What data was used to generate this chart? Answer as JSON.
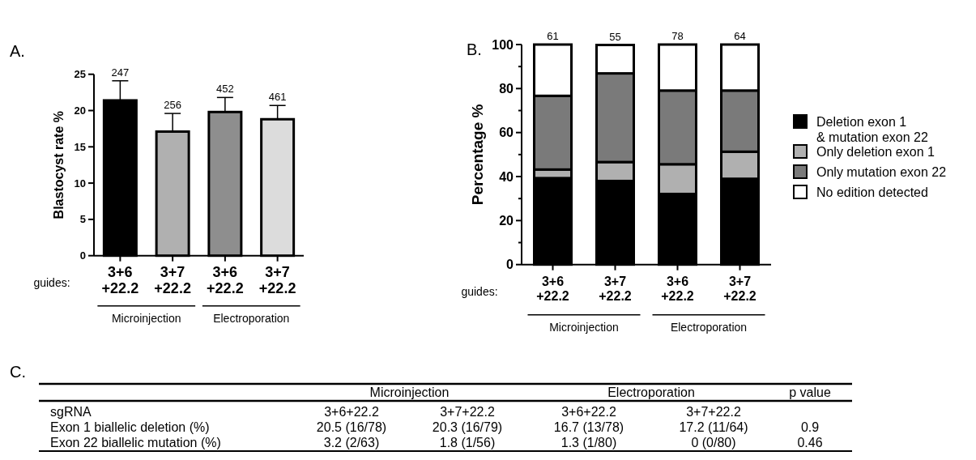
{
  "chart_data": [
    {
      "type": "bar",
      "title": "A.",
      "ylabel": "Blastocyst rate %",
      "categories": [
        "3+6\n+22.2",
        "3+7\n+22.2",
        "3+6\n+22.2",
        "3+7\n+22.2"
      ],
      "values": [
        21.4,
        17.1,
        19.8,
        18.8
      ],
      "errors": [
        2.7,
        2.5,
        2.0,
        1.9
      ],
      "colors": [
        "#000000",
        "#b0b0b0",
        "#8e8e8e",
        "#dcdcdc"
      ],
      "ylim": [
        0,
        25
      ],
      "yticks": [
        0,
        5,
        10,
        15,
        20,
        25
      ],
      "grid": false,
      "legend": false,
      "annotations": [
        "247",
        "256",
        "452",
        "461",
        "guides:",
        "Microinjection",
        "Electroporation"
      ]
    },
    {
      "type": "bar",
      "title": "B.",
      "ylabel": "Percentage %",
      "stacked": true,
      "categories": [
        "3+6\n+22.2",
        "3+7\n+22.2",
        "3+6\n+22.2",
        "3+7\n+22.2"
      ],
      "series": [
        {
          "name": "Deletion exon 1\n& mutation exon 22",
          "color": "#000000",
          "values": [
            39.3,
            38.0,
            32.1,
            39.0
          ]
        },
        {
          "name": "Only deletion exon 1",
          "color": "#b0b0b0",
          "values": [
            3.9,
            8.6,
            13.5,
            12.3
          ]
        },
        {
          "name": "Only mutation exon 22",
          "color": "#7a7a7a",
          "values": [
            33.5,
            40.3,
            33.5,
            27.8
          ]
        },
        {
          "name": "No edition detected",
          "color": "#ffffff",
          "values": [
            23.3,
            12.9,
            20.9,
            20.9
          ]
        }
      ],
      "ylim": [
        0,
        100
      ],
      "yticks": [
        0,
        {
          "value": 10,
          "label": null
        },
        20,
        {
          "value": 30,
          "label": null
        },
        40,
        {
          "value": 50,
          "label": null
        },
        60,
        {
          "value": 70,
          "label": null
        },
        80,
        {
          "value": 90,
          "label": null
        },
        100
      ],
      "grid": false,
      "legend": "right",
      "annotations": [
        "61",
        "55",
        "78",
        "64",
        "guides:",
        "Microinjection",
        "Electroporation"
      ]
    },
    {
      "type": "other",
      "title": "C.",
      "categories": [
        "Microinjection",
        "Electroporation",
        "p value"
      ],
      "y_categories": [
        "sgRNA",
        "Exon 1 biallelic deletion (%)",
        "Exon 22 biallelic mutation (%)"
      ],
      "cell_labels": [
        [
          "3+6+22.2",
          "3+7+22.2",
          "3+6+22.2",
          "3+7+22.2",
          null
        ],
        [
          "20.5 (16/78)",
          "20.3 (16/79)",
          "16.7 (13/78)",
          "17.2 (11/64)",
          "0.9"
        ],
        [
          "3.2 (2/63)",
          "1.8 (1/56)",
          "1.3 (1/80)",
          "0 (0/80)",
          "0.46"
        ]
      ]
    }
  ]
}
